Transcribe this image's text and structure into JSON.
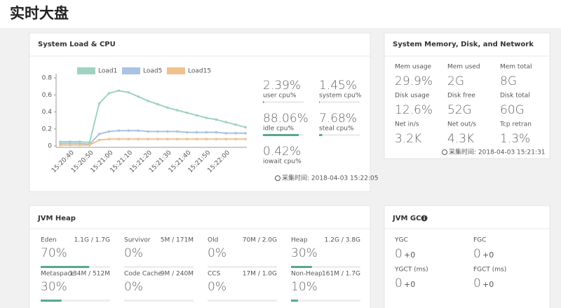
{
  "page_title": "实时大盘",
  "load_cpu": {
    "title": "System Load & CPU",
    "chart": {
      "type": "line",
      "categories": [
        null,
        "15:20:40",
        null,
        "15:20:50",
        null,
        "15:21:00",
        null,
        "15:21:10",
        null,
        "15:21:20",
        null,
        "15:21:30",
        null,
        "15:21:40",
        null,
        "15:21:50",
        null,
        "15:22:00",
        null,
        null
      ],
      "series": [
        {
          "name": "Load1",
          "color": "#9fd3c0",
          "values": [
            0.05,
            0.05,
            0.05,
            0.04,
            0.5,
            0.62,
            0.65,
            0.63,
            0.58,
            0.53,
            0.49,
            0.45,
            0.42,
            0.39,
            0.36,
            0.33,
            0.31,
            0.28,
            0.25,
            0.22
          ]
        },
        {
          "name": "Load5",
          "color": "#a9c3e3",
          "values": [
            0.03,
            0.03,
            0.03,
            0.02,
            0.14,
            0.17,
            0.18,
            0.18,
            0.18,
            0.17,
            0.17,
            0.17,
            0.17,
            0.16,
            0.16,
            0.16,
            0.16,
            0.15,
            0.15,
            0.15
          ]
        },
        {
          "name": "Load15",
          "color": "#efc18e",
          "values": [
            0.01,
            0.01,
            0.01,
            0.01,
            0.07,
            0.08,
            0.08,
            0.08,
            0.08,
            0.08,
            0.08,
            0.08,
            0.08,
            0.08,
            0.08,
            0.08,
            0.08,
            0.08,
            0.08,
            0.08
          ]
        }
      ],
      "ylim": [
        0,
        0.85
      ],
      "yticks": [
        0,
        0.2,
        0.4,
        0.6,
        0.8
      ]
    },
    "cpu": [
      {
        "value": 2.39,
        "value_label": "2.39%",
        "label": "user cpu%"
      },
      {
        "value": 1.45,
        "value_label": "1.45%",
        "label": "system cpu%"
      },
      {
        "value": 88.06,
        "value_label": "88.06%",
        "label": "idle cpu%"
      },
      {
        "value": 7.68,
        "value_label": "7.68%",
        "label": "steal cpu%"
      },
      {
        "value": 0.42,
        "value_label": "0.42%",
        "label": "iowait cpu%"
      }
    ],
    "footer": "采集时间: 2018-04-03 15:22:05"
  },
  "memory": {
    "title": "System Memory, Disk, and Network",
    "items": [
      {
        "label": "Mem usage",
        "value": "29.9%"
      },
      {
        "label": "Mem used",
        "value": "2G"
      },
      {
        "label": "Mem total",
        "value": "8G"
      },
      {
        "label": "Disk usage",
        "value": "12.6%"
      },
      {
        "label": "Disk free",
        "value": "52G"
      },
      {
        "label": "Disk total",
        "value": "60G"
      },
      {
        "label": "Net in/s",
        "value": "3.2K"
      },
      {
        "label": "Net out/s",
        "value": "4.3K"
      },
      {
        "label": "Tcp retran",
        "value": "1.3%"
      }
    ],
    "footer": "采集时间: 2018-04-03 15:21:31"
  },
  "jvm_heap": {
    "title": "JVM Heap",
    "items": [
      {
        "name": "Eden",
        "usage": "1.1G / 1.7G",
        "percent": 70,
        "percent_label": "70%"
      },
      {
        "name": "Survivor",
        "usage": "5M / 171M",
        "percent": 0,
        "percent_label": "0%"
      },
      {
        "name": "Old",
        "usage": "70M / 2.0G",
        "percent": 0,
        "percent_label": "0%"
      },
      {
        "name": "Heap",
        "usage": "1.2G / 3.8G",
        "percent": 30,
        "percent_label": "30%"
      },
      {
        "name": "Metaspace",
        "usage": "134M / 512M",
        "percent": 30,
        "percent_label": "30%"
      },
      {
        "name": "Code Cache",
        "usage": "9M / 240M",
        "percent": 0,
        "percent_label": "0%"
      },
      {
        "name": "CCS",
        "usage": "17M / 1.0G",
        "percent": 0,
        "percent_label": "0%"
      },
      {
        "name": "Non-Heap",
        "usage": "161M / 1.7G",
        "percent": 10,
        "percent_label": "10%"
      }
    ]
  },
  "jvm_gc": {
    "title": "JVM GC",
    "items": [
      {
        "label": "YGC",
        "value": "0",
        "delta": "+0"
      },
      {
        "label": "FGC",
        "value": "0",
        "delta": "+0"
      },
      {
        "label": "YGCT (ms)",
        "value": "0",
        "delta": "+0"
      },
      {
        "label": "FGCT (ms)",
        "value": "0",
        "delta": "+0"
      }
    ]
  }
}
